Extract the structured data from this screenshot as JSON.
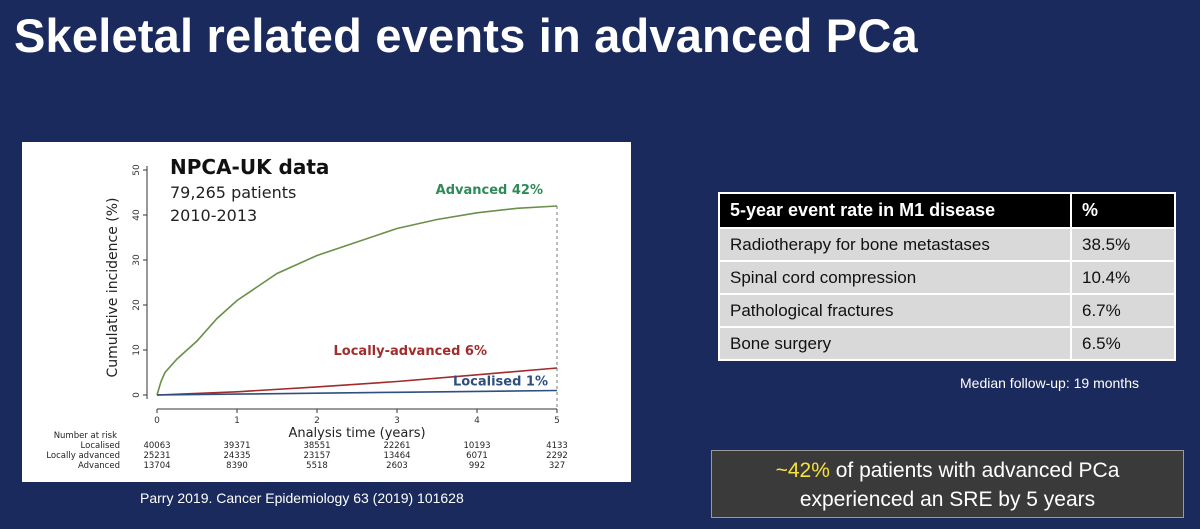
{
  "slide": {
    "title": "Skeletal related events in advanced PCa",
    "source": "Parry 2019. Cancer Epidemiology 63 (2019) 101628"
  },
  "chart_data": {
    "type": "line",
    "title": "NPCA-UK data",
    "subtitle_lines": [
      "79,265 patients",
      "2010-2013"
    ],
    "xlabel": "Analysis time (years)",
    "ylabel": "Cumulative incidence (%)",
    "xlim": [
      0,
      5
    ],
    "ylim": [
      0,
      50
    ],
    "x_ticks": [
      0,
      1,
      2,
      3,
      4,
      5
    ],
    "y_ticks": [
      0,
      10,
      20,
      30,
      40,
      50
    ],
    "reference_line_x": 5,
    "series": [
      {
        "name": "Advanced",
        "end_label": "Advanced 42%",
        "color": "#6b8f4b",
        "label_color": "#2e8b57",
        "x": [
          0,
          0.05,
          0.1,
          0.25,
          0.5,
          0.75,
          1,
          1.25,
          1.5,
          1.75,
          2,
          2.5,
          3,
          3.5,
          4,
          4.5,
          5
        ],
        "y": [
          0,
          3,
          5,
          8,
          12,
          17,
          21,
          24,
          27,
          29,
          31,
          34,
          37,
          39,
          40.5,
          41.5,
          42
        ]
      },
      {
        "name": "Locally-advanced",
        "end_label": "Locally-advanced 6%",
        "color": "#a02c2c",
        "label_color": "#a02c2c",
        "x": [
          0,
          1,
          2,
          3,
          4,
          5
        ],
        "y": [
          0,
          0.7,
          1.8,
          3.0,
          4.5,
          6.0
        ]
      },
      {
        "name": "Localised",
        "end_label": "Localised 1%",
        "color": "#2f4f7f",
        "label_color": "#2f4f7f",
        "x": [
          0,
          1,
          2,
          3,
          4,
          5
        ],
        "y": [
          0,
          0.2,
          0.4,
          0.6,
          0.8,
          1.0
        ]
      }
    ],
    "risk_table": {
      "header": "Number at risk",
      "rows": [
        {
          "label": "Localised",
          "values": [
            "40063",
            "39371",
            "38551",
            "22261",
            "10193",
            "4133"
          ]
        },
        {
          "label": "Locally advanced",
          "values": [
            "25231",
            "24335",
            "23157",
            "13464",
            "6071",
            "2292"
          ]
        },
        {
          "label": "Advanced",
          "values": [
            "13704",
            "8390",
            "5518",
            "2603",
            "992",
            "327"
          ]
        }
      ]
    }
  },
  "event_table": {
    "headers": [
      "5-year event rate in M1 disease",
      "%"
    ],
    "rows": [
      [
        "Radiotherapy for bone metastases",
        "38.5%"
      ],
      [
        "Spinal cord compression",
        "10.4%"
      ],
      [
        "Pathological fractures",
        "6.7%"
      ],
      [
        "Bone surgery",
        "6.5%"
      ]
    ],
    "note": "Median follow-up: 19 months"
  },
  "callout": {
    "highlight": "~42%",
    "line1_rest": " of patients with advanced PCa",
    "line2": "experienced an SRE by 5 years",
    "highlight_color": "#f5e33a"
  }
}
